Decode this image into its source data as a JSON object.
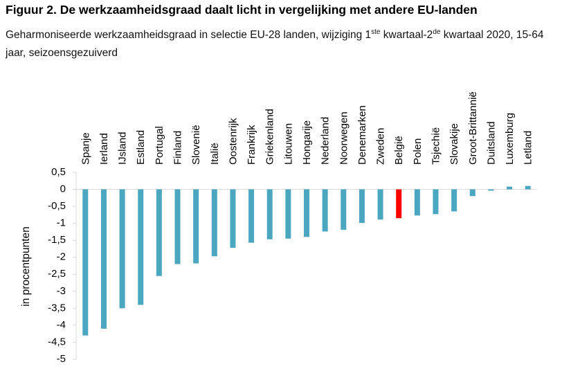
{
  "figure": {
    "title": "Figuur 2. De werkzaamheidsgraad daalt licht in vergelijking met andere EU-landen",
    "subtitle_part1": "Geharmoniseerde werkzaamheidsgraad in selectie EU-28 landen, wijziging 1",
    "subtitle_sup1": "ste",
    "subtitle_part2": " kwartaal-2",
    "subtitle_sup2": "de",
    "subtitle_part3": " kwartaal 2020, 15-64 jaar, seizoensgezuiverd"
  },
  "chart_data": {
    "type": "bar",
    "title": "",
    "xlabel": "",
    "ylabel": "in procentpunten",
    "ylim": [
      -5,
      0.5
    ],
    "yticks": [
      0.5,
      0,
      -0.5,
      -1,
      -1.5,
      -2,
      -2.5,
      -3,
      -3.5,
      -4,
      -4.5,
      -5
    ],
    "ytick_labels": [
      "0,5",
      "0",
      "-0,5",
      "-1",
      "-1,5",
      "-2",
      "-2,5",
      "-3",
      "-3,5",
      "-4",
      "-4,5",
      "-5"
    ],
    "grid": false,
    "legend": "none",
    "categories": [
      "Spanje",
      "Ierland",
      "IJsland",
      "Estland",
      "Portugal",
      "Finland",
      "Slovenië",
      "Italië",
      "Oostenrijk",
      "Frankrijk",
      "Griekenland",
      "Litouwen",
      "Hongarije",
      "Nederland",
      "Noorwegen",
      "Denemarken",
      "Zweden",
      "België",
      "Polen",
      "Tsjechië",
      "Slovakije",
      "Groot-Brittannië",
      "Duitsland",
      "Luxemburg",
      "Letland"
    ],
    "values": [
      -4.3,
      -4.1,
      -3.5,
      -3.4,
      -2.55,
      -2.2,
      -2.18,
      -1.97,
      -1.72,
      -1.57,
      -1.47,
      -1.45,
      -1.4,
      -1.24,
      -1.19,
      -0.99,
      -0.89,
      -0.85,
      -0.77,
      -0.73,
      -0.65,
      -0.2,
      -0.04,
      0.08,
      0.1
    ],
    "colors": {
      "default": "#4BA6BF",
      "highlight": "#FF0000",
      "highlight_category": "België",
      "axis": "#D9D9D9"
    }
  }
}
